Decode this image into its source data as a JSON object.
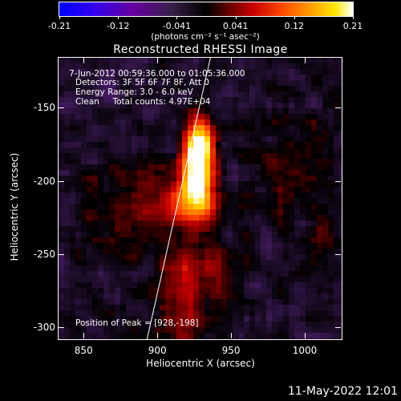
{
  "colorbar": {
    "tick_labels": [
      "-0.21",
      "-0.12",
      "-0.041",
      "0.041",
      "0.12",
      "0.21"
    ],
    "units_label": "(photons cm⁻² s⁻¹ asec⁻²)",
    "range": [
      -0.21,
      0.21
    ]
  },
  "title": "Reconstructed RHESSI Image",
  "info": {
    "time": "7-Jun-2012 00:59:36.000 to 01:05:36.000",
    "detectors": "Detectors: 3F 5F 6F 7F 8F, Att 0",
    "energy": "Energy Range: 3.0 - 6.0 keV",
    "clean": "Clean     Total counts: 4.97E+04",
    "peak": "Position of Peak = [928,-198]"
  },
  "axes": {
    "xlabel": "Heliocentric X (arcsec)",
    "ylabel": "Heliocentric Y (arcsec)",
    "xticks": [
      "850",
      "900",
      "950",
      "1000"
    ],
    "yticks": [
      "-150",
      "-200",
      "-250",
      "-300"
    ],
    "xtick_values": [
      850,
      900,
      950,
      1000
    ],
    "ytick_values": [
      -150,
      -200,
      -250,
      -300
    ],
    "xlim": [
      833,
      1025
    ],
    "ylim": [
      -308,
      -116
    ]
  },
  "limb_line": {
    "x": [
      893,
      936
    ],
    "y": [
      -308,
      -116
    ]
  },
  "peak": {
    "x": 928,
    "y": -198
  },
  "timestamp": "11-May-2022 12:01",
  "colors": {
    "colormap": [
      "#0000ff",
      "#5a00a8",
      "#3c1a55",
      "#000000",
      "#8b0000",
      "#e12d00",
      "#ff8a00",
      "#ffe000",
      "#ffffff"
    ]
  }
}
